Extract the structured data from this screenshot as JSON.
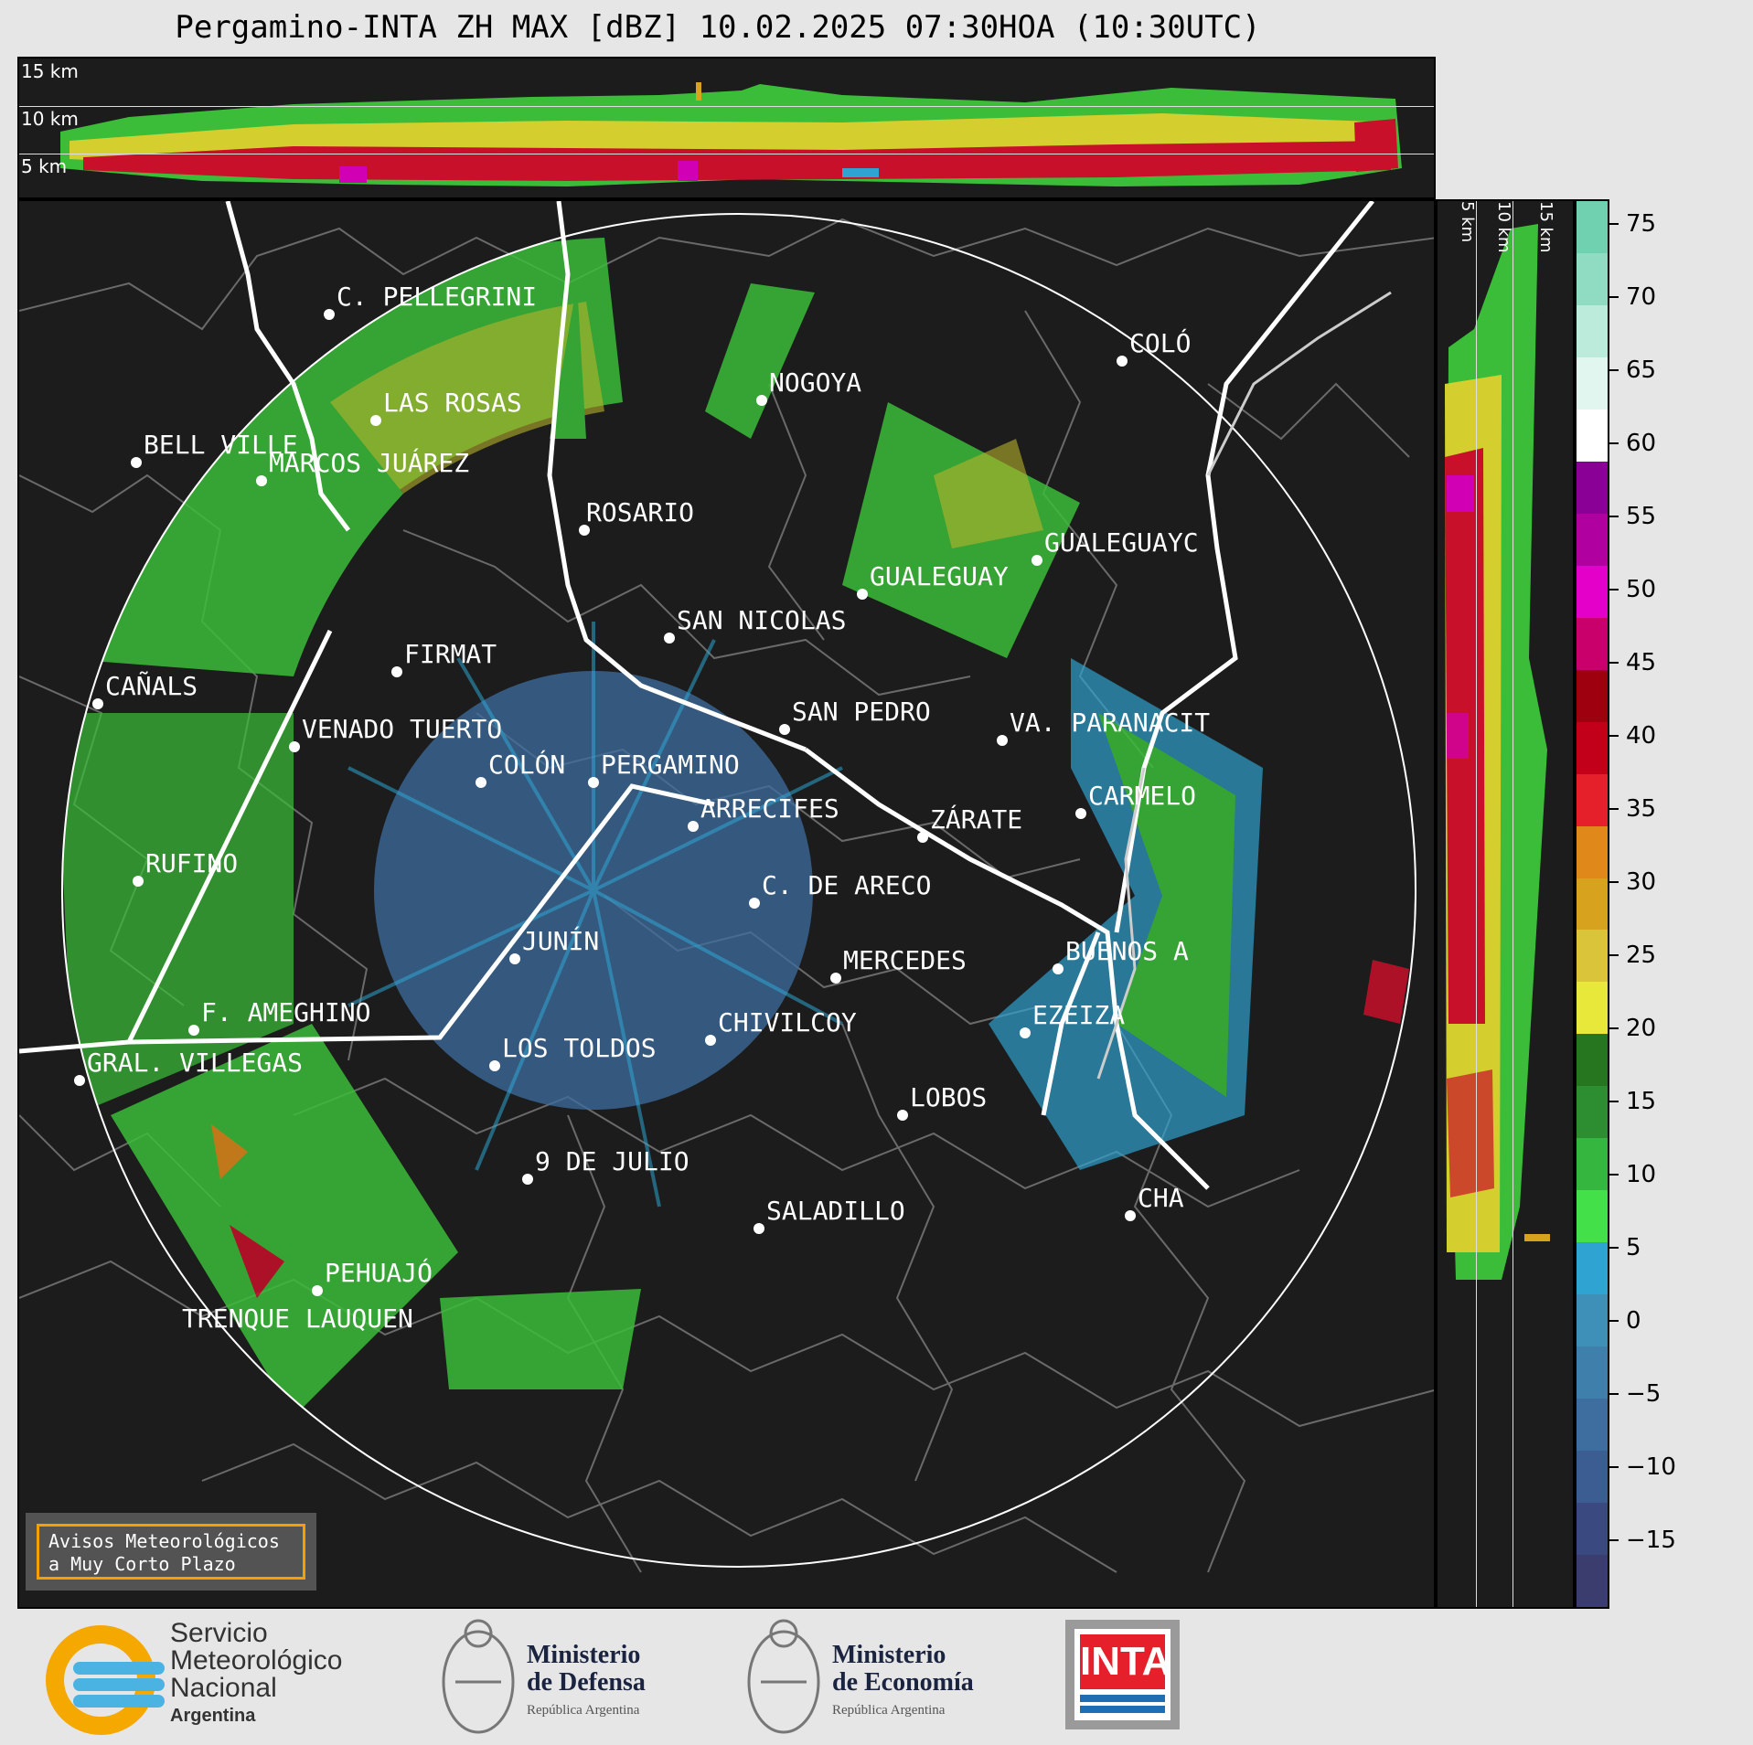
{
  "title": "Pergamino-INTA ZH MAX [dBZ] 10.02.2025 07:30HOA (10:30UTC)",
  "top_panel": {
    "height_labels": [
      "15 km",
      "10 km",
      "5 km"
    ]
  },
  "right_panel": {
    "height_labels": [
      "5 km",
      "10 km",
      "15 km"
    ]
  },
  "colorbar": {
    "ticks": [
      "75",
      "70",
      "65",
      "60",
      "55",
      "50",
      "45",
      "40",
      "35",
      "30",
      "25",
      "20",
      "15",
      "10",
      "5",
      "0",
      "−5",
      "−10",
      "−15"
    ],
    "colors": [
      "#3a3d6e",
      "#3a4a80",
      "#3b5d92",
      "#3d6e9f",
      "#3e7fab",
      "#3f90b8",
      "#2fa4d2",
      "#44e04a",
      "#35b63e",
      "#2c8e30",
      "#26761f",
      "#e8e83a",
      "#d9c43a",
      "#d7a31f",
      "#e0891a",
      "#e5202a",
      "#c2001a",
      "#9f0010",
      "#c9006b",
      "#e500c9",
      "#b0009f",
      "#8a0097",
      "#ffffff",
      "#e0f6ee",
      "#bcebdc",
      "#8fdcc2",
      "#6fd1b0"
    ]
  },
  "cities": [
    {
      "name": "C. PELLEGRINI"
    },
    {
      "name": "LAS ROSAS"
    },
    {
      "name": "BELL VILLE"
    },
    {
      "name": "MARCOS JUÁREZ"
    },
    {
      "name": "NOGOYA"
    },
    {
      "name": "COLÓ"
    },
    {
      "name": "ROSARIO"
    },
    {
      "name": "GUALEGUAYC"
    },
    {
      "name": "GUALEGUAY"
    },
    {
      "name": "SAN NICOLAS"
    },
    {
      "name": "FIRMAT"
    },
    {
      "name": "CAÑALS"
    },
    {
      "name": "SAN PEDRO"
    },
    {
      "name": "VA. PARANACIT"
    },
    {
      "name": "VENADO TUERTO"
    },
    {
      "name": "COLÓN"
    },
    {
      "name": "PERGAMINO"
    },
    {
      "name": "CARMELO"
    },
    {
      "name": "ARRECIFES"
    },
    {
      "name": "ZÁRATE"
    },
    {
      "name": "RUFINO"
    },
    {
      "name": "C. DE ARECO"
    },
    {
      "name": "JUNÍN"
    },
    {
      "name": "BUENOS A"
    },
    {
      "name": "MERCEDES"
    },
    {
      "name": "F. AMEGHINO"
    },
    {
      "name": "EZEIZA"
    },
    {
      "name": "CHIVILCOY"
    },
    {
      "name": "LOS TOLDOS"
    },
    {
      "name": "GRAL. VILLEGAS"
    },
    {
      "name": "LOBOS"
    },
    {
      "name": "9 DE JULIO"
    },
    {
      "name": "SALADILLO"
    },
    {
      "name": "CHA"
    },
    {
      "name": "PEHUAJÓ"
    },
    {
      "name": "TRENQUE LAUQUEN"
    }
  ],
  "warning_box": {
    "line1": "Avisos Meteorológicos",
    "line2": "a Muy Corto Plazo"
  },
  "logos": {
    "smn": {
      "line1": "Servicio",
      "line2": "Meteorológico",
      "line3": "Nacional",
      "line4": "Argentina"
    },
    "defensa": {
      "line1": "Ministerio",
      "line2": "de Defensa",
      "line3": "República Argentina"
    },
    "economia": {
      "line1": "Ministerio",
      "line2": "de Economía",
      "line3": "República Argentina"
    },
    "inta": {
      "text": "INTA"
    }
  }
}
